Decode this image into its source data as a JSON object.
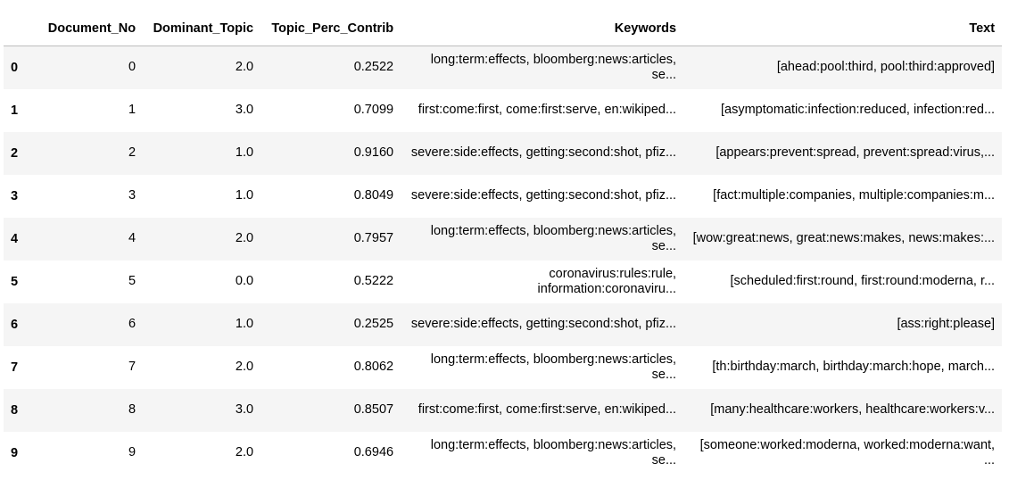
{
  "dataframe": {
    "columns": [
      "",
      "Document_No",
      "Dominant_Topic",
      "Topic_Perc_Contrib",
      "Keywords",
      "Text"
    ],
    "rows": [
      {
        "index": "0",
        "document_no": "0",
        "dominant_topic": "2.0",
        "topic_perc_contrib": "0.2522",
        "keywords": "long:term:effects, bloomberg:news:articles, se...",
        "text": "[ahead:pool:third, pool:third:approved]"
      },
      {
        "index": "1",
        "document_no": "1",
        "dominant_topic": "3.0",
        "topic_perc_contrib": "0.7099",
        "keywords": "first:come:first, come:first:serve, en:wikiped...",
        "text": "[asymptomatic:infection:reduced, infection:red..."
      },
      {
        "index": "2",
        "document_no": "2",
        "dominant_topic": "1.0",
        "topic_perc_contrib": "0.9160",
        "keywords": "severe:side:effects, getting:second:shot, pfiz...",
        "text": "[appears:prevent:spread, prevent:spread:virus,..."
      },
      {
        "index": "3",
        "document_no": "3",
        "dominant_topic": "1.0",
        "topic_perc_contrib": "0.8049",
        "keywords": "severe:side:effects, getting:second:shot, pfiz...",
        "text": "[fact:multiple:companies, multiple:companies:m..."
      },
      {
        "index": "4",
        "document_no": "4",
        "dominant_topic": "2.0",
        "topic_perc_contrib": "0.7957",
        "keywords": "long:term:effects, bloomberg:news:articles, se...",
        "text": "[wow:great:news, great:news:makes, news:makes:..."
      },
      {
        "index": "5",
        "document_no": "5",
        "dominant_topic": "0.0",
        "topic_perc_contrib": "0.5222",
        "keywords": "coronavirus:rules:rule, information:coronaviru...",
        "text": "[scheduled:first:round, first:round:moderna, r..."
      },
      {
        "index": "6",
        "document_no": "6",
        "dominant_topic": "1.0",
        "topic_perc_contrib": "0.2525",
        "keywords": "severe:side:effects, getting:second:shot, pfiz...",
        "text": "[ass:right:please]"
      },
      {
        "index": "7",
        "document_no": "7",
        "dominant_topic": "2.0",
        "topic_perc_contrib": "0.8062",
        "keywords": "long:term:effects, bloomberg:news:articles, se...",
        "text": "[th:birthday:march, birthday:march:hope, march..."
      },
      {
        "index": "8",
        "document_no": "8",
        "dominant_topic": "3.0",
        "topic_perc_contrib": "0.8507",
        "keywords": "first:come:first, come:first:serve, en:wikiped...",
        "text": "[many:healthcare:workers, healthcare:workers:v..."
      },
      {
        "index": "9",
        "document_no": "9",
        "dominant_topic": "2.0",
        "topic_perc_contrib": "0.6946",
        "keywords": "long:term:effects, bloomberg:news:articles, se...",
        "text": "[someone:worked:moderna, worked:moderna:want, ..."
      }
    ]
  }
}
